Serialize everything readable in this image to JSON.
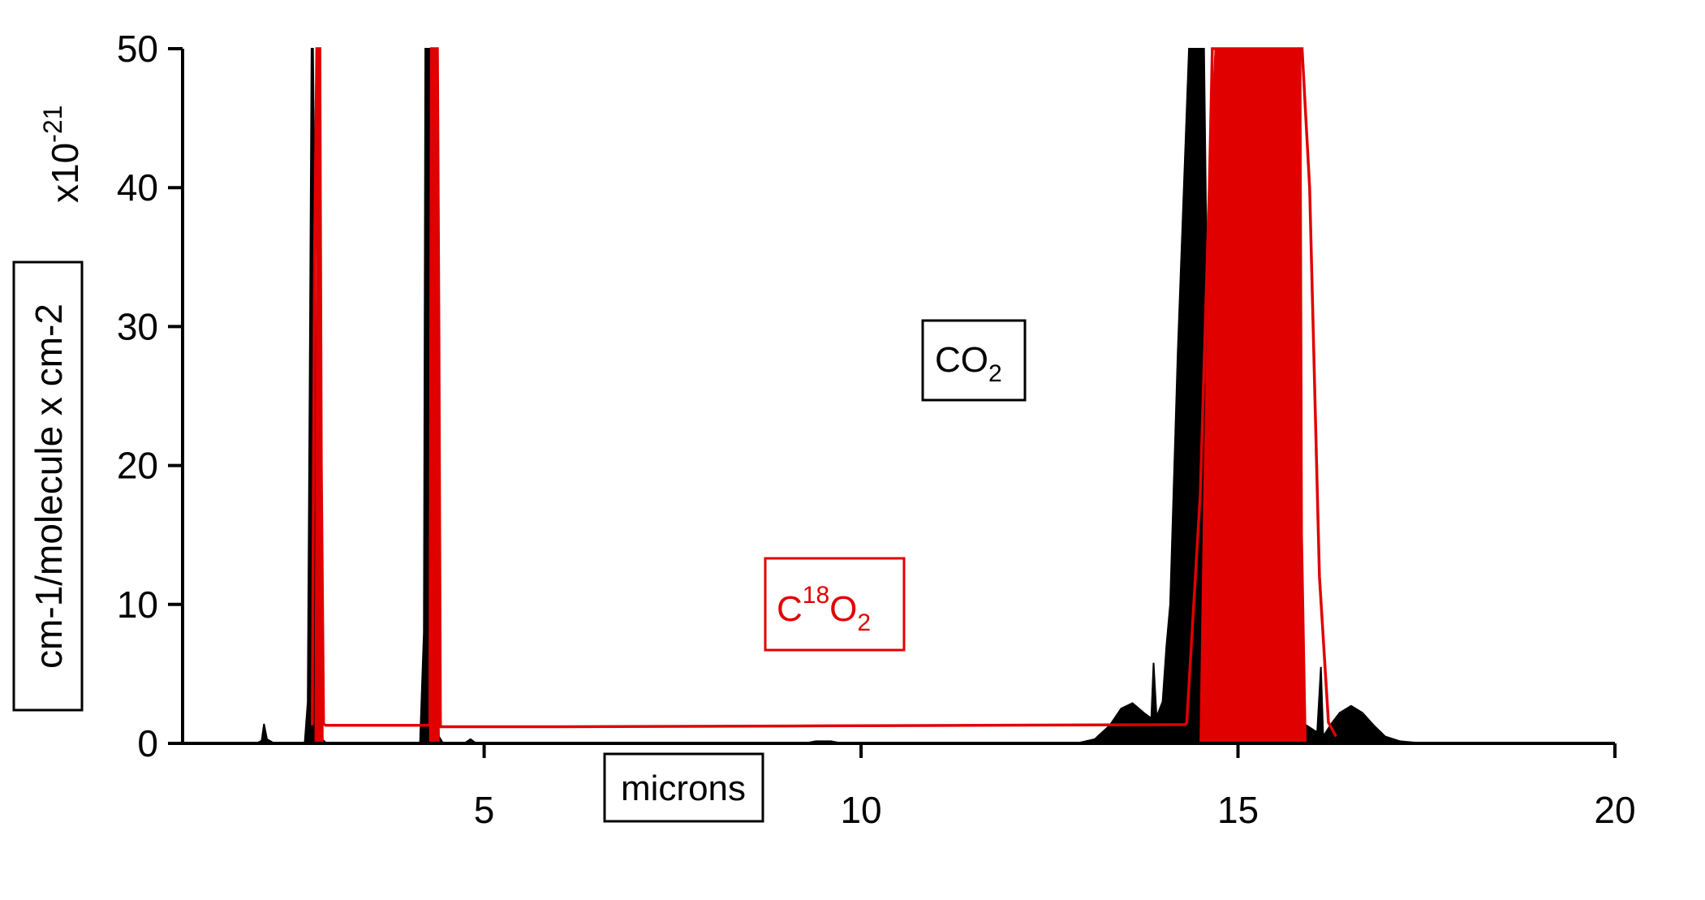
{
  "chart_data": {
    "type": "line",
    "xlabel": "microns",
    "ylabel": "cm-1/molecule x cm-2",
    "y_multiplier": "x10",
    "y_multiplier_exponent": "-21",
    "xlim": [
      1.0,
      20.0
    ],
    "ylim": [
      0,
      50
    ],
    "x_ticks": [
      5,
      10,
      15,
      20
    ],
    "y_ticks": [
      0,
      10,
      20,
      30,
      40,
      50
    ],
    "grid": false,
    "annotations": [
      {
        "text": "CO",
        "subscript": "2",
        "color": "#000000",
        "x": 10.5,
        "y": 27.5
      },
      {
        "text": "C",
        "superscript": "18",
        "tail": "O",
        "subscript": "2",
        "color": "#e00000",
        "x": 9.8,
        "y": 9.2
      }
    ],
    "series": [
      {
        "name": "CO2",
        "color": "#000000",
        "fill": true,
        "points": [
          [
            1.2,
            0
          ],
          [
            1.3,
            0.05
          ],
          [
            2.0,
            0.05
          ],
          [
            2.05,
            0.2
          ],
          [
            2.08,
            1.4
          ],
          [
            2.12,
            0.3
          ],
          [
            2.2,
            0.05
          ],
          [
            2.62,
            0.05
          ],
          [
            2.66,
            3
          ],
          [
            2.69,
            30
          ],
          [
            2.71,
            50
          ],
          [
            2.73,
            50
          ],
          [
            2.75,
            38.5
          ],
          [
            2.77,
            20
          ],
          [
            2.8,
            3
          ],
          [
            2.85,
            0.3
          ],
          [
            2.9,
            0.05
          ],
          [
            4.15,
            0.05
          ],
          [
            4.2,
            8
          ],
          [
            4.22,
            50
          ],
          [
            4.28,
            50
          ],
          [
            4.32,
            50
          ],
          [
            4.36,
            12
          ],
          [
            4.4,
            0.5
          ],
          [
            4.45,
            0.05
          ],
          [
            4.75,
            0.05
          ],
          [
            4.82,
            0.3
          ],
          [
            4.88,
            0.05
          ],
          [
            9.3,
            0.05
          ],
          [
            9.4,
            0.15
          ],
          [
            9.6,
            0.15
          ],
          [
            9.7,
            0.05
          ],
          [
            12.9,
            0.05
          ],
          [
            13.1,
            0.3
          ],
          [
            13.3,
            1.3
          ],
          [
            13.45,
            2.5
          ],
          [
            13.6,
            2.9
          ],
          [
            13.75,
            2.2
          ],
          [
            13.85,
            1.8
          ],
          [
            13.88,
            5.8
          ],
          [
            13.92,
            1.9
          ],
          [
            14.0,
            3
          ],
          [
            14.05,
            7
          ],
          [
            14.1,
            10
          ],
          [
            14.2,
            28
          ],
          [
            14.35,
            50
          ],
          [
            14.55,
            50
          ],
          [
            14.65,
            5
          ],
          [
            14.8,
            6
          ],
          [
            14.95,
            7.1
          ],
          [
            15.1,
            6
          ],
          [
            15.2,
            3.5
          ],
          [
            15.3,
            3
          ],
          [
            15.45,
            4.4
          ],
          [
            15.6,
            3.5
          ],
          [
            15.72,
            2.5
          ],
          [
            15.8,
            2.5
          ],
          [
            15.85,
            1.5
          ],
          [
            16.05,
            0.8
          ],
          [
            16.1,
            5.5
          ],
          [
            16.13,
            0.5
          ],
          [
            16.25,
            1.5
          ],
          [
            16.35,
            2.2
          ],
          [
            16.5,
            2.7
          ],
          [
            16.65,
            2.2
          ],
          [
            16.8,
            1.3
          ],
          [
            16.95,
            0.5
          ],
          [
            17.15,
            0.15
          ],
          [
            17.4,
            0.03
          ],
          [
            20.0,
            0
          ]
        ]
      },
      {
        "name": "C18O2",
        "color": "#e00000",
        "fill": false,
        "points": [
          [
            2.72,
            1.3
          ],
          [
            2.75,
            35
          ],
          [
            2.78,
            50
          ],
          [
            2.82,
            50
          ],
          [
            2.84,
            20
          ],
          [
            2.87,
            1.4
          ],
          [
            2.9,
            1.3
          ],
          [
            4.28,
            1.3
          ],
          [
            4.3,
            50
          ],
          [
            4.38,
            50
          ],
          [
            4.4,
            30
          ],
          [
            4.42,
            1.2
          ],
          [
            6.0,
            1.2
          ],
          [
            9.0,
            1.25
          ],
          [
            14.3,
            1.35
          ],
          [
            14.32,
            1.5
          ],
          [
            14.5,
            18
          ],
          [
            14.62,
            40
          ],
          [
            14.66,
            50
          ],
          [
            15.85,
            50
          ],
          [
            15.95,
            40
          ],
          [
            16.08,
            12
          ],
          [
            16.2,
            1.5
          ],
          [
            16.3,
            0.5
          ]
        ]
      },
      {
        "name": "C18O2-band",
        "color": "#e00000",
        "fill": true,
        "points": [
          [
            2.76,
            0
          ],
          [
            2.79,
            50
          ],
          [
            2.82,
            50
          ],
          [
            2.86,
            0
          ],
          [
            4.28,
            0
          ],
          [
            4.3,
            50
          ],
          [
            4.38,
            50
          ],
          [
            4.4,
            0
          ],
          [
            14.5,
            0
          ],
          [
            14.55,
            18
          ],
          [
            14.65,
            45
          ],
          [
            14.7,
            50
          ],
          [
            15.83,
            50
          ],
          [
            15.85,
            15
          ],
          [
            15.9,
            0
          ]
        ]
      }
    ]
  }
}
